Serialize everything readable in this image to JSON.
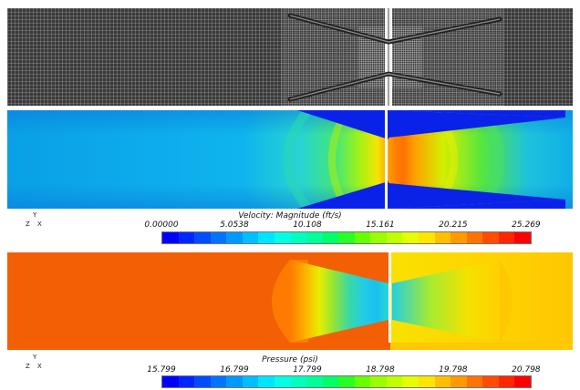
{
  "views": {
    "velocity": {
      "legend_title": "Velocity: Magnitude (ft/s)",
      "ticks": [
        "0.00000",
        "5.0538",
        "10.108",
        "15.161",
        "20.215",
        "25.269"
      ],
      "colors": [
        "#0000ff",
        "#0026ff",
        "#004cff",
        "#0073ff",
        "#0099ff",
        "#00bfff",
        "#00e5ff",
        "#00ffe5",
        "#00ffbf",
        "#00ff99",
        "#00ff66",
        "#26ff26",
        "#66ff00",
        "#99ff00",
        "#bfff00",
        "#e5ff00",
        "#ffe500",
        "#ffbf00",
        "#ff9900",
        "#ff7300",
        "#ff4c00",
        "#ff2600",
        "#ff0000"
      ]
    },
    "pressure": {
      "legend_title": "Pressure (psi)",
      "ticks": [
        "15.799",
        "16.799",
        "17.799",
        "18.798",
        "19.798",
        "20.798"
      ],
      "colors": [
        "#0000ff",
        "#0026ff",
        "#004cff",
        "#0073ff",
        "#0099ff",
        "#00bfff",
        "#00e5ff",
        "#00ffe5",
        "#00ffbf",
        "#00ff99",
        "#00ff66",
        "#26ff26",
        "#66ff00",
        "#99ff00",
        "#bfff00",
        "#e5ff00",
        "#ffe500",
        "#ffbf00",
        "#ff9900",
        "#ff7300",
        "#ff4c00",
        "#ff2600",
        "#ff0000"
      ]
    }
  },
  "axes": {
    "y": "Y",
    "z": "Z",
    "x": "X"
  }
}
